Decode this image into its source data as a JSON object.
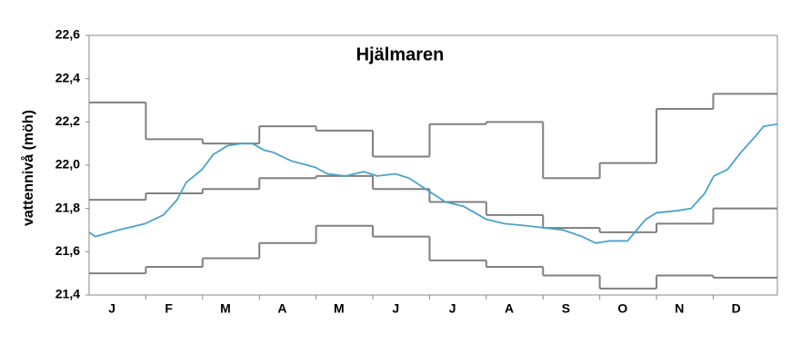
{
  "chart_data": {
    "type": "line",
    "title": "Hjälmaren",
    "y_label": "vattennivå (möh)",
    "categories": [
      "J",
      "F",
      "M",
      "A",
      "M",
      "J",
      "J",
      "A",
      "S",
      "O",
      "N",
      "D"
    ],
    "xlim": [
      0,
      12.13
    ],
    "ylim": [
      21.4,
      22.6
    ],
    "yticks": [
      {
        "value": 21.4,
        "label": "21,4"
      },
      {
        "value": 21.6,
        "label": "21,6"
      },
      {
        "value": 21.8,
        "label": "21,8"
      },
      {
        "value": 22.0,
        "label": "22,0"
      },
      {
        "value": 22.2,
        "label": "22,2"
      },
      {
        "value": 22.4,
        "label": "22,4"
      },
      {
        "value": 22.6,
        "label": "22,6"
      }
    ],
    "series": [
      {
        "color": "#7f7f7f",
        "step": true,
        "values": [
          22.29,
          22.12,
          22.1,
          22.18,
          22.16,
          22.04,
          22.19,
          22.2,
          21.94,
          22.01,
          22.26,
          22.33
        ]
      },
      {
        "color": "#7f7f7f",
        "step": true,
        "values": [
          21.84,
          21.87,
          21.89,
          21.94,
          21.95,
          21.89,
          21.83,
          21.77,
          21.71,
          21.69,
          21.73,
          21.8
        ]
      },
      {
        "color": "#7f7f7f",
        "step": true,
        "values": [
          21.5,
          21.53,
          21.57,
          21.64,
          21.72,
          21.67,
          21.56,
          21.53,
          21.49,
          21.43,
          21.49,
          21.48
        ]
      },
      {
        "color": "#4ba3c8",
        "step": false,
        "x": [
          0,
          0.11,
          0.51,
          0.99,
          1.31,
          1.55,
          1.71,
          1.99,
          2.19,
          2.44,
          2.68,
          2.88,
          3.08,
          3.24,
          3.56,
          3.99,
          4.2,
          4.52,
          4.84,
          5.08,
          5.4,
          5.64,
          5.99,
          6.28,
          6.6,
          7.0,
          7.32,
          7.72,
          8.04,
          8.36,
          8.69,
          8.93,
          9.17,
          9.49,
          9.65,
          9.81,
          10.0,
          10.37,
          10.61,
          10.85,
          11.01,
          11.25,
          11.49,
          11.73,
          11.89,
          12.13
        ],
        "values": [
          21.69,
          21.67,
          21.7,
          21.73,
          21.77,
          21.84,
          21.92,
          21.98,
          22.05,
          22.09,
          22.1,
          22.1,
          22.07,
          22.06,
          22.02,
          21.99,
          21.96,
          21.95,
          21.97,
          21.95,
          21.96,
          21.94,
          21.88,
          21.83,
          21.81,
          21.75,
          21.73,
          21.72,
          21.71,
          21.7,
          21.67,
          21.64,
          21.65,
          21.65,
          21.7,
          21.75,
          21.78,
          21.79,
          21.8,
          21.87,
          21.95,
          21.98,
          22.06,
          22.13,
          22.18,
          22.19
        ]
      }
    ]
  }
}
